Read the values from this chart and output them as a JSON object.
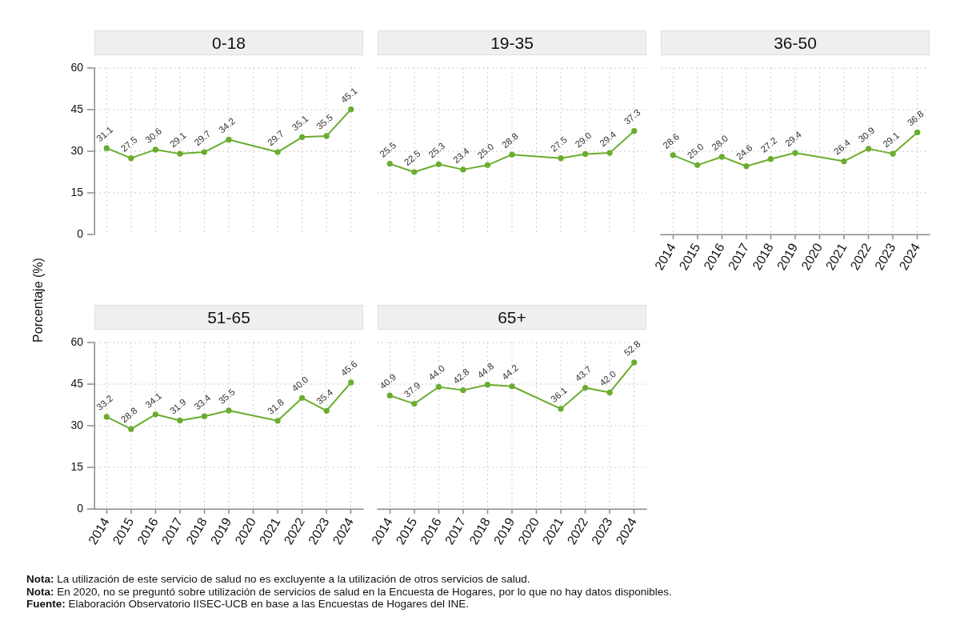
{
  "chart_data": [
    {
      "type": "line",
      "title": "0-18",
      "ylabel": "Porcentaje (%)",
      "categories": [
        "2014",
        "2015",
        "2016",
        "2017",
        "2018",
        "2019",
        "2020",
        "2021",
        "2022",
        "2023",
        "2024"
      ],
      "values": [
        31.1,
        27.5,
        30.6,
        29.1,
        29.7,
        34.2,
        null,
        29.7,
        35.1,
        35.5,
        45.1
      ],
      "value_labels": [
        "31.1",
        "27.5",
        "30.6",
        "29.1",
        "29.7",
        "34.2",
        null,
        "29.7",
        "35.1",
        "35.5",
        "45.1"
      ],
      "color": "#6aad2e",
      "ylim": [
        0,
        60
      ],
      "yticks": [
        0,
        15,
        30,
        45,
        60
      ],
      "grid": true,
      "marker": "circle",
      "tick_labels": "y",
      "annotations": [
        "Nota: La utilización de este servicio de salud no es excluyente a la utilización de otros servicios de salud.",
        "Nota: En 2020, no se preguntó sobre utilización de servicios de salud en la Encuesta de Hogares, por lo que no hay datos disponibles.",
        "Fuente: Elaboración Observatorio IISEC-UCB en base a las Encuestas de Hogares del INE."
      ]
    },
    {
      "type": "line",
      "title": "19-35",
      "categories": [
        "2014",
        "2015",
        "2016",
        "2017",
        "2018",
        "2019",
        "2020",
        "2021",
        "2022",
        "2023",
        "2024"
      ],
      "values": [
        25.5,
        22.5,
        25.3,
        23.4,
        25.0,
        28.8,
        null,
        27.5,
        29.0,
        29.4,
        37.3
      ],
      "value_labels": [
        "25.5",
        "22.5",
        "25.3",
        "23.4",
        "25.0",
        "28.8",
        null,
        "27.5",
        "29.0",
        "29.4",
        "37.3"
      ],
      "color": "#6aad2e",
      "ylim": [
        0,
        60
      ],
      "yticks": [
        0,
        15,
        30,
        45,
        60
      ],
      "grid": true,
      "marker": "circle",
      "tick_labels": false
    },
    {
      "type": "line",
      "title": "36-50",
      "categories": [
        "2014",
        "2015",
        "2016",
        "2017",
        "2018",
        "2019",
        "2020",
        "2021",
        "2022",
        "2023",
        "2024"
      ],
      "values": [
        28.6,
        25.0,
        28.0,
        24.6,
        27.2,
        29.4,
        null,
        26.4,
        30.9,
        29.1,
        36.8
      ],
      "value_labels": [
        "28.6",
        "25.0",
        "28.0",
        "24.6",
        "27.2",
        "29.4",
        null,
        "26.4",
        "30.9",
        "29.1",
        "36.8"
      ],
      "color": "#6aad2e",
      "ylim": [
        0,
        60
      ],
      "yticks": [
        0,
        15,
        30,
        45,
        60
      ],
      "grid": true,
      "marker": "circle",
      "tick_labels": "x"
    },
    {
      "type": "line",
      "title": "51-65",
      "categories": [
        "2014",
        "2015",
        "2016",
        "2017",
        "2018",
        "2019",
        "2020",
        "2021",
        "2022",
        "2023",
        "2024"
      ],
      "values": [
        33.2,
        28.8,
        34.1,
        31.9,
        33.4,
        35.5,
        null,
        31.8,
        40.0,
        35.4,
        45.6
      ],
      "value_labels": [
        "33.2",
        "28.8",
        "34.1",
        "31.9",
        "33.4",
        "35.5",
        null,
        "31.8",
        "40.0",
        "35.4",
        "45.6"
      ],
      "color": "#6aad2e",
      "ylim": [
        0,
        60
      ],
      "yticks": [
        0,
        15,
        30,
        45,
        60
      ],
      "grid": true,
      "marker": "circle"
    },
    {
      "type": "line",
      "title": "65+",
      "categories": [
        "2014",
        "2015",
        "2016",
        "2017",
        "2018",
        "2019",
        "2020",
        "2021",
        "2022",
        "2023",
        "2024"
      ],
      "values": [
        40.9,
        37.9,
        44.0,
        42.8,
        44.8,
        44.2,
        null,
        36.1,
        43.7,
        42.0,
        52.8
      ],
      "value_labels": [
        "40.9",
        "37.9",
        "44.0",
        "42.8",
        "44.8",
        "44.2",
        null,
        "36.1",
        "43.7",
        "42.0",
        "52.8"
      ],
      "color": "#6aad2e",
      "ylim": [
        0,
        60
      ],
      "yticks": [
        0,
        15,
        30,
        45,
        60
      ],
      "grid": true,
      "marker": "circle",
      "tick_labels": "x"
    }
  ]
}
